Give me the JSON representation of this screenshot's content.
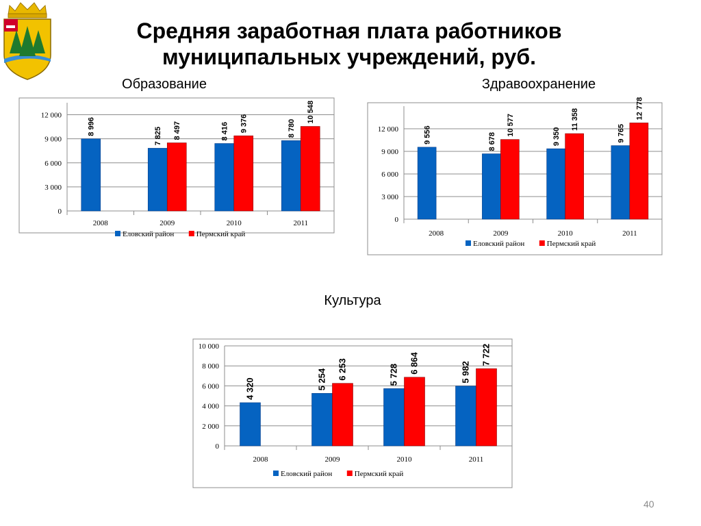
{
  "title": "Средняя заработная плата работников\nмуниципальных учреждений, руб.",
  "page_number": "40",
  "colors": {
    "elovsky": "#0563C1",
    "perm": "#FF0000"
  },
  "chart_data": [
    {
      "type": "bar",
      "title": "Образование",
      "categories": [
        "2008",
        "2009",
        "2010",
        "2011"
      ],
      "series": [
        {
          "name": "Еловский район",
          "values": [
            8996,
            7825,
            8416,
            8780
          ],
          "labels": [
            "8 996",
            "7 825",
            "8 416",
            "8 780"
          ]
        },
        {
          "name": "Пермский край",
          "values": [
            null,
            8497,
            9376,
            10548
          ],
          "labels": [
            "",
            "8 497",
            "9 376",
            "10 548"
          ]
        }
      ],
      "yticks": [
        "0",
        "3 000",
        "6 000",
        "9 000",
        "12 000"
      ],
      "ylim": [
        0,
        13500
      ],
      "grid": true,
      "legend": "bottom"
    },
    {
      "type": "bar",
      "title": "Здравоохранение",
      "categories": [
        "2008",
        "2009",
        "2010",
        "2011"
      ],
      "series": [
        {
          "name": "Еловский район",
          "values": [
            9556,
            8678,
            9350,
            9765
          ],
          "labels": [
            "9 556",
            "8 678",
            "9 350",
            "9 765"
          ]
        },
        {
          "name": "Пермский край",
          "values": [
            null,
            10577,
            11358,
            12778
          ],
          "labels": [
            "",
            "10 577",
            "11 358",
            "12 778"
          ]
        }
      ],
      "yticks": [
        "0",
        "3 000",
        "6 000",
        "9 000",
        "12 000"
      ],
      "ylim": [
        0,
        15000
      ],
      "grid": true,
      "legend": "bottom"
    },
    {
      "type": "bar",
      "title": "Культура",
      "categories": [
        "2008",
        "2009",
        "2010",
        "2011"
      ],
      "series": [
        {
          "name": "Еловский район",
          "values": [
            4320,
            5254,
            5728,
            5982
          ],
          "labels": [
            "4 320",
            "5 254",
            "5 728",
            "5 982"
          ]
        },
        {
          "name": "Пермский край",
          "values": [
            null,
            6253,
            6864,
            7722
          ],
          "labels": [
            "",
            "6 253",
            "6 864",
            "7 722"
          ]
        }
      ],
      "yticks": [
        "0",
        "2 000",
        "4 000",
        "6 000",
        "8 000",
        "10 000"
      ],
      "ylim": [
        0,
        10000
      ],
      "grid": true,
      "legend": "bottom"
    }
  ]
}
